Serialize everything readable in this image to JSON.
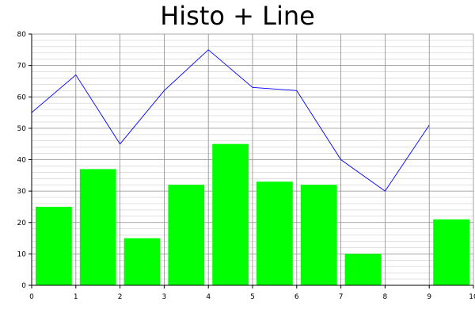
{
  "chart_data": {
    "type": "bar",
    "title": "Histo + Line",
    "xlabel": "",
    "ylabel": "",
    "xlim": [
      0,
      10
    ],
    "ylim": [
      0,
      80
    ],
    "x_ticks": [
      "0",
      "1",
      "2",
      "3",
      "4",
      "5",
      "6",
      "7",
      "8",
      "9",
      "10"
    ],
    "y_ticks": [
      "0",
      "10",
      "20",
      "30",
      "40",
      "50",
      "60",
      "70",
      "80"
    ],
    "grid": true,
    "legend": "none",
    "series": [
      {
        "type": "bar",
        "color": "#00ff00",
        "bins": [
          [
            0,
            1
          ],
          [
            1,
            2
          ],
          [
            2,
            3
          ],
          [
            3,
            4
          ],
          [
            4,
            5
          ],
          [
            5,
            6
          ],
          [
            6,
            7
          ],
          [
            7,
            8
          ],
          [
            8,
            9
          ],
          [
            9,
            10
          ]
        ],
        "values": [
          25,
          37,
          15,
          32,
          45,
          33,
          32,
          10,
          0,
          21
        ]
      },
      {
        "type": "line",
        "color": "#0000ff",
        "x": [
          0,
          1,
          2,
          3,
          4,
          5,
          6,
          7,
          8,
          9
        ],
        "values": [
          55,
          67,
          45,
          62,
          75,
          63,
          62,
          40,
          30,
          51
        ]
      }
    ]
  }
}
